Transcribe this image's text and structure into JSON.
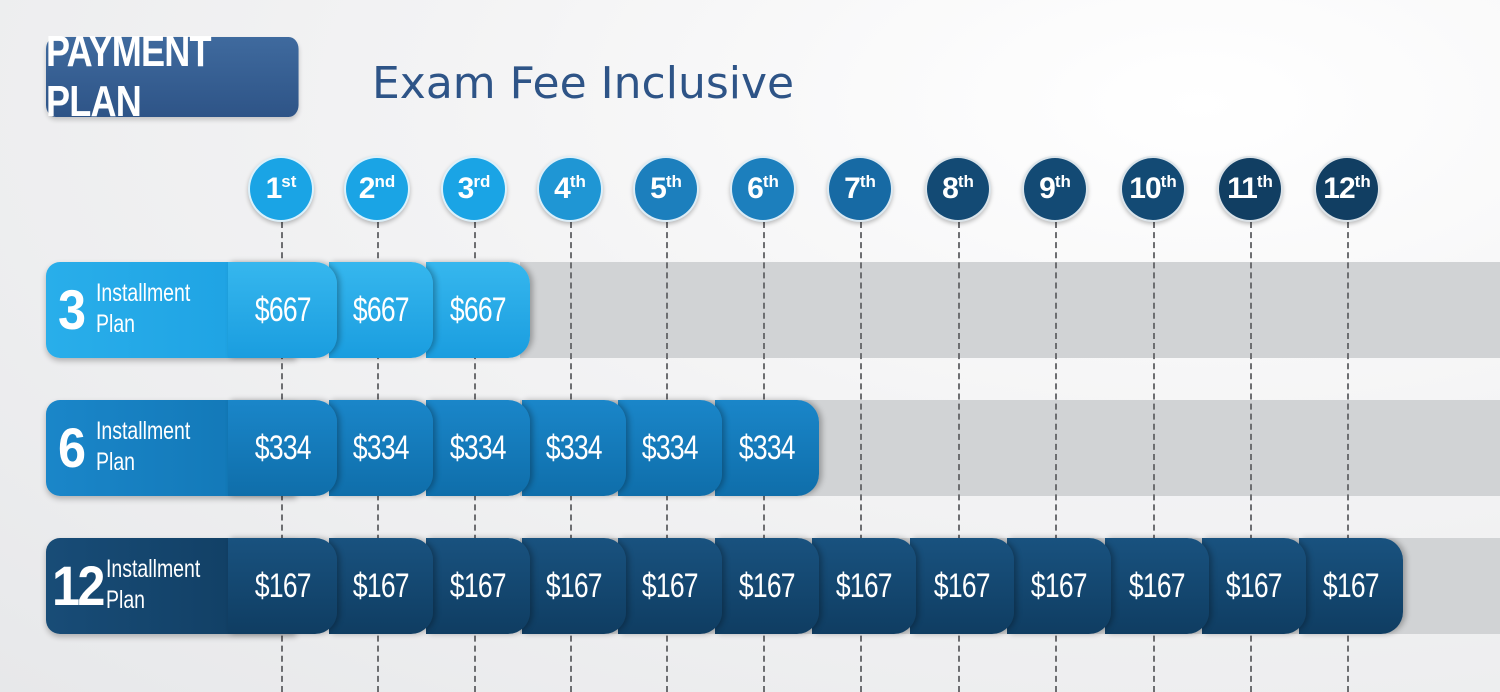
{
  "header": {
    "badge": "PAYMENT PLAN",
    "subtitle": "Exam Fee Inclusive"
  },
  "installments": [
    {
      "n": "1",
      "suffix": "st"
    },
    {
      "n": "2",
      "suffix": "nd"
    },
    {
      "n": "3",
      "suffix": "rd"
    },
    {
      "n": "4",
      "suffix": "th"
    },
    {
      "n": "5",
      "suffix": "th"
    },
    {
      "n": "6",
      "suffix": "th"
    },
    {
      "n": "7",
      "suffix": "th"
    },
    {
      "n": "8",
      "suffix": "th"
    },
    {
      "n": "9",
      "suffix": "th"
    },
    {
      "n": "10",
      "suffix": "th"
    },
    {
      "n": "11",
      "suffix": "th"
    },
    {
      "n": "12",
      "suffix": "th"
    }
  ],
  "plans": [
    {
      "count": "3",
      "label_line1": "Installment",
      "label_line2": "Plan",
      "amount": "$667",
      "payments": 3,
      "color": "#1aa4e5"
    },
    {
      "count": "6",
      "label_line1": "Installment",
      "label_line2": "Plan",
      "amount": "$334",
      "payments": 6,
      "color": "#1a86c9"
    },
    {
      "count": "12",
      "label_line1": "Installment",
      "label_line2": "Plan",
      "amount": "$167",
      "payments": 12,
      "color": "#123f65"
    }
  ],
  "colors": {
    "accent": "#2e5487",
    "lane": "#d1d3d5"
  }
}
